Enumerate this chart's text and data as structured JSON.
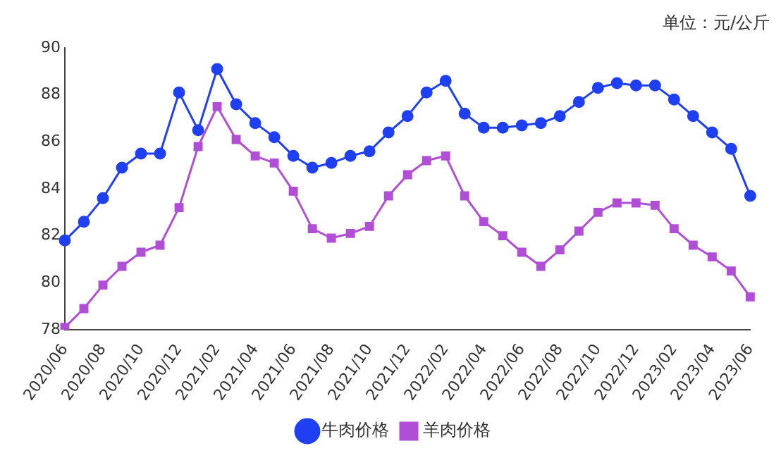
{
  "chart_data": {
    "type": "line",
    "annotations": [
      "单位：元/公斤"
    ],
    "categories": [
      "2020/06",
      null,
      "2020/08",
      null,
      "2020/10",
      null,
      "2020/12",
      null,
      "2021/02",
      null,
      "2021/04",
      null,
      "2021/06",
      null,
      "2021/08",
      null,
      "2021/10",
      null,
      "2021/12",
      null,
      "2022/02",
      null,
      "2022/04",
      null,
      "2022/06",
      null,
      "2022/08",
      null,
      "2022/10",
      null,
      "2022/12",
      null,
      "2023/02",
      null,
      "2023/04",
      null,
      "2023/06"
    ],
    "series": [
      {
        "name": "牛肉价格",
        "color": "#1f3ff2",
        "marker": "circle",
        "values": [
          81.8,
          82.6,
          83.6,
          84.9,
          85.5,
          85.5,
          88.1,
          86.5,
          89.1,
          87.6,
          86.8,
          86.2,
          85.4,
          84.9,
          85.1,
          85.4,
          85.6,
          86.4,
          87.1,
          88.1,
          88.6,
          87.2,
          86.6,
          86.6,
          86.7,
          86.8,
          87.1,
          87.7,
          88.3,
          88.5,
          88.4,
          88.4,
          87.8,
          87.1,
          86.4,
          85.7,
          83.7
        ]
      },
      {
        "name": "羊肉价格",
        "color": "#b04fd6",
        "marker": "square",
        "values": [
          78.1,
          78.9,
          79.9,
          80.7,
          81.3,
          81.6,
          83.2,
          85.8,
          87.5,
          86.1,
          85.4,
          85.1,
          83.9,
          82.3,
          81.9,
          82.1,
          82.4,
          83.7,
          84.6,
          85.2,
          85.4,
          83.7,
          82.6,
          82.0,
          81.3,
          80.7,
          81.4,
          82.2,
          83.0,
          83.4,
          83.4,
          83.3,
          82.3,
          81.6,
          81.1,
          80.5,
          79.4
        ]
      }
    ],
    "ylim": [
      78,
      90
    ],
    "yticks": [
      78,
      80,
      82,
      84,
      86,
      88,
      90
    ],
    "grid": false,
    "legend": "bottom",
    "line_style": "solid"
  }
}
